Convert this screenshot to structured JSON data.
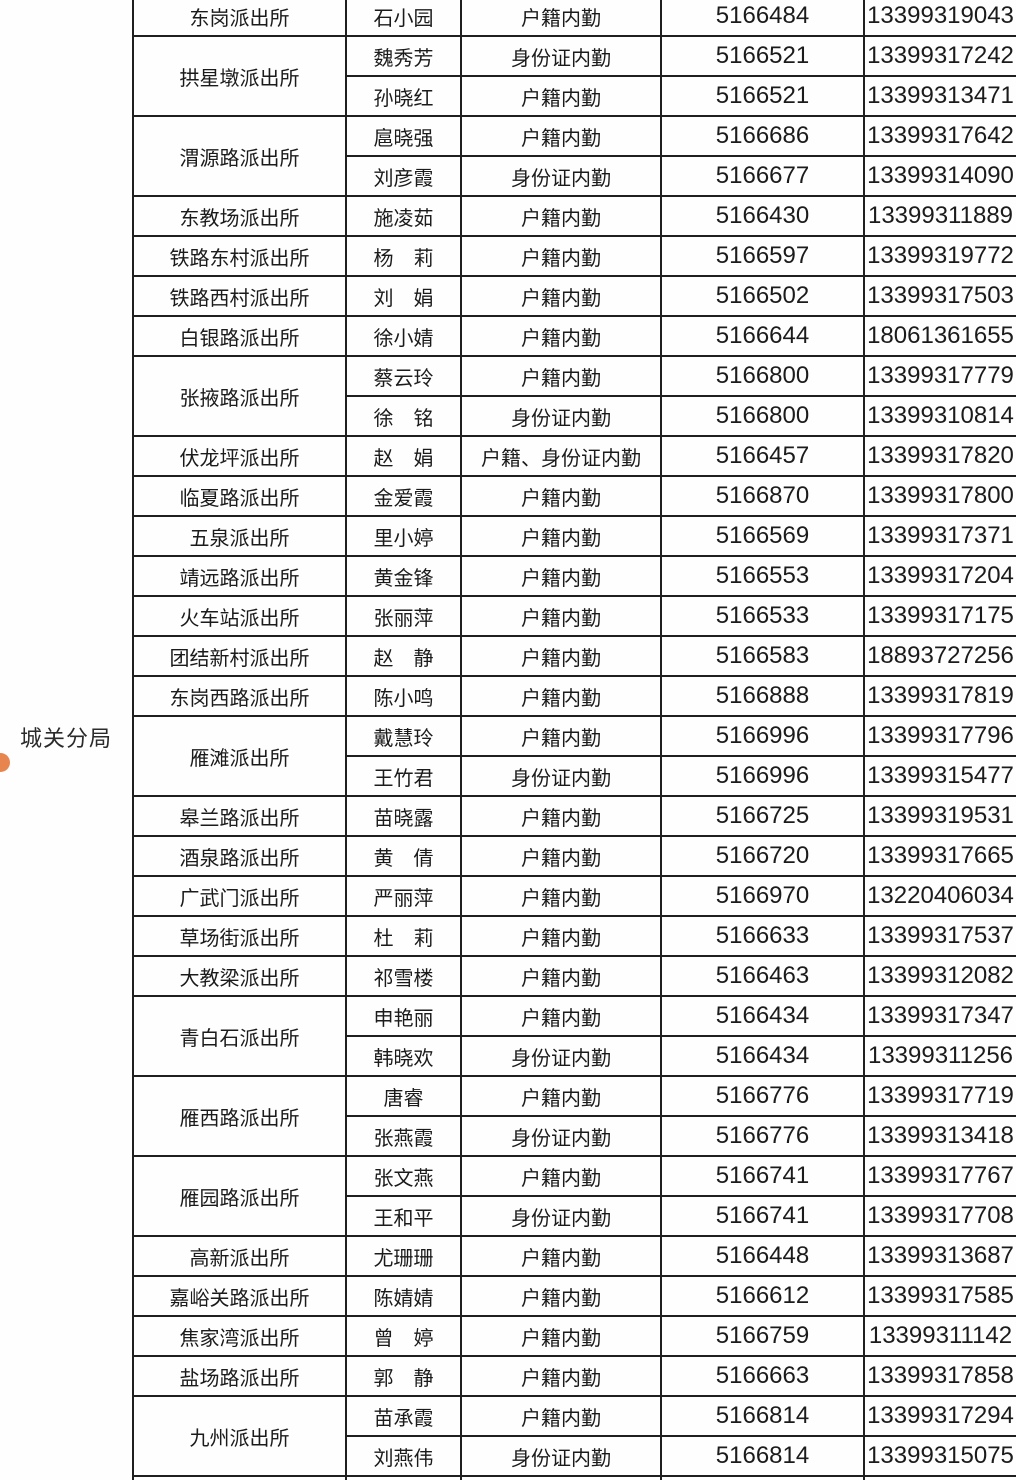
{
  "sidebar": {
    "bureau_label": "城关分局",
    "dot_color": "#E8854E"
  },
  "table": {
    "border_color": "#1F1F1F",
    "groups": [
      {
        "station": "东岗派出所",
        "rows": [
          {
            "name": "石小园",
            "duty": "户籍内勤",
            "phone": "5166484",
            "mobile": "13399319043"
          }
        ]
      },
      {
        "station": "拱星墩派出所",
        "rows": [
          {
            "name": "魏秀芳",
            "duty": "身份证内勤",
            "phone": "5166521",
            "mobile": "13399317242"
          },
          {
            "name": "孙晓红",
            "duty": "户籍内勤",
            "phone": "5166521",
            "mobile": "13399313471"
          }
        ]
      },
      {
        "station": "渭源路派出所",
        "rows": [
          {
            "name": "扈晓强",
            "duty": "户籍内勤",
            "phone": "5166686",
            "mobile": "13399317642"
          },
          {
            "name": "刘彦霞",
            "duty": "身份证内勤",
            "phone": "5166677",
            "mobile": "13399314090"
          }
        ]
      },
      {
        "station": "东教场派出所",
        "rows": [
          {
            "name": "施凌茹",
            "duty": "户籍内勤",
            "phone": "5166430",
            "mobile": "13399311889"
          }
        ]
      },
      {
        "station": "铁路东村派出所",
        "rows": [
          {
            "name": "杨　莉",
            "duty": "户籍内勤",
            "phone": "5166597",
            "mobile": "13399319772"
          }
        ]
      },
      {
        "station": "铁路西村派出所",
        "rows": [
          {
            "name": "刘　娟",
            "duty": "户籍内勤",
            "phone": "5166502",
            "mobile": "13399317503"
          }
        ]
      },
      {
        "station": "白银路派出所",
        "rows": [
          {
            "name": "徐小婧",
            "duty": "户籍内勤",
            "phone": "5166644",
            "mobile": "18061361655"
          }
        ]
      },
      {
        "station": "张掖路派出所",
        "rows": [
          {
            "name": "蔡云玲",
            "duty": "户籍内勤",
            "phone": "5166800",
            "mobile": "13399317779"
          },
          {
            "name": "徐　铭",
            "duty": "身份证内勤",
            "phone": "5166800",
            "mobile": "13399310814"
          }
        ]
      },
      {
        "station": "伏龙坪派出所",
        "rows": [
          {
            "name": "赵　娟",
            "duty": "户籍、身份证内勤",
            "phone": "5166457",
            "mobile": "13399317820"
          }
        ]
      },
      {
        "station": "临夏路派出所",
        "rows": [
          {
            "name": "金爱霞",
            "duty": "户籍内勤",
            "phone": "5166870",
            "mobile": "13399317800"
          }
        ]
      },
      {
        "station": "五泉派出所",
        "rows": [
          {
            "name": "里小婷",
            "duty": "户籍内勤",
            "phone": "5166569",
            "mobile": "13399317371"
          }
        ]
      },
      {
        "station": "靖远路派出所",
        "rows": [
          {
            "name": "黄金锋",
            "duty": "户籍内勤",
            "phone": "5166553",
            "mobile": "13399317204"
          }
        ]
      },
      {
        "station": "火车站派出所",
        "rows": [
          {
            "name": "张丽萍",
            "duty": "户籍内勤",
            "phone": "5166533",
            "mobile": "13399317175"
          }
        ]
      },
      {
        "station": "团结新村派出所",
        "rows": [
          {
            "name": "赵　静",
            "duty": "户籍内勤",
            "phone": "5166583",
            "mobile": "18893727256"
          }
        ]
      },
      {
        "station": "东岗西路派出所",
        "rows": [
          {
            "name": "陈小鸣",
            "duty": "户籍内勤",
            "phone": "5166888",
            "mobile": "13399317819"
          }
        ]
      },
      {
        "station": "雁滩派出所",
        "rows": [
          {
            "name": "戴慧玲",
            "duty": "户籍内勤",
            "phone": "5166996",
            "mobile": "13399317796"
          },
          {
            "name": "王竹君",
            "duty": "身份证内勤",
            "phone": "5166996",
            "mobile": "13399315477"
          }
        ]
      },
      {
        "station": "皋兰路派出所",
        "rows": [
          {
            "name": "苗晓露",
            "duty": "户籍内勤",
            "phone": "5166725",
            "mobile": "13399319531"
          }
        ]
      },
      {
        "station": "酒泉路派出所",
        "rows": [
          {
            "name": "黄　倩",
            "duty": "户籍内勤",
            "phone": "5166720",
            "mobile": "13399317665"
          }
        ]
      },
      {
        "station": "广武门派出所",
        "rows": [
          {
            "name": "严丽萍",
            "duty": "户籍内勤",
            "phone": "5166970",
            "mobile": "13220406034"
          }
        ]
      },
      {
        "station": "草场街派出所",
        "rows": [
          {
            "name": "杜　莉",
            "duty": "户籍内勤",
            "phone": "5166633",
            "mobile": "13399317537"
          }
        ]
      },
      {
        "station": "大教梁派出所",
        "rows": [
          {
            "name": "祁雪楼",
            "duty": "户籍内勤",
            "phone": "5166463",
            "mobile": "13399312082"
          }
        ]
      },
      {
        "station": "青白石派出所",
        "rows": [
          {
            "name": "申艳丽",
            "duty": "户籍内勤",
            "phone": "5166434",
            "mobile": "13399317347"
          },
          {
            "name": "韩晓欢",
            "duty": "身份证内勤",
            "phone": "5166434",
            "mobile": "13399311256"
          }
        ]
      },
      {
        "station": "雁西路派出所",
        "rows": [
          {
            "name": "唐睿",
            "duty": "户籍内勤",
            "phone": "5166776",
            "mobile": "13399317719"
          },
          {
            "name": "张燕霞",
            "duty": "身份证内勤",
            "phone": "5166776",
            "mobile": "13399313418"
          }
        ]
      },
      {
        "station": "雁园路派出所",
        "rows": [
          {
            "name": "张文燕",
            "duty": "户籍内勤",
            "phone": "5166741",
            "mobile": "13399317767"
          },
          {
            "name": "王和平",
            "duty": "身份证内勤",
            "phone": "5166741",
            "mobile": "13399317708"
          }
        ]
      },
      {
        "station": "高新派出所",
        "rows": [
          {
            "name": "尤珊珊",
            "duty": "户籍内勤",
            "phone": "5166448",
            "mobile": "13399313687"
          }
        ]
      },
      {
        "station": "嘉峪关路派出所",
        "rows": [
          {
            "name": "陈婧婧",
            "duty": "户籍内勤",
            "phone": "5166612",
            "mobile": "13399317585"
          }
        ]
      },
      {
        "station": "焦家湾派出所",
        "rows": [
          {
            "name": "曾　婷",
            "duty": "户籍内勤",
            "phone": "5166759",
            "mobile": "13399311142"
          }
        ]
      },
      {
        "station": "盐场路派出所",
        "rows": [
          {
            "name": "郭　静",
            "duty": "户籍内勤",
            "phone": "5166663",
            "mobile": "13399317858"
          }
        ]
      },
      {
        "station": "九州派出所",
        "rows": [
          {
            "name": "苗承霞",
            "duty": "户籍内勤",
            "phone": "5166814",
            "mobile": "13399317294"
          },
          {
            "name": "刘燕伟",
            "duty": "身份证内勤",
            "phone": "5166814",
            "mobile": "13399315075"
          }
        ]
      }
    ]
  }
}
